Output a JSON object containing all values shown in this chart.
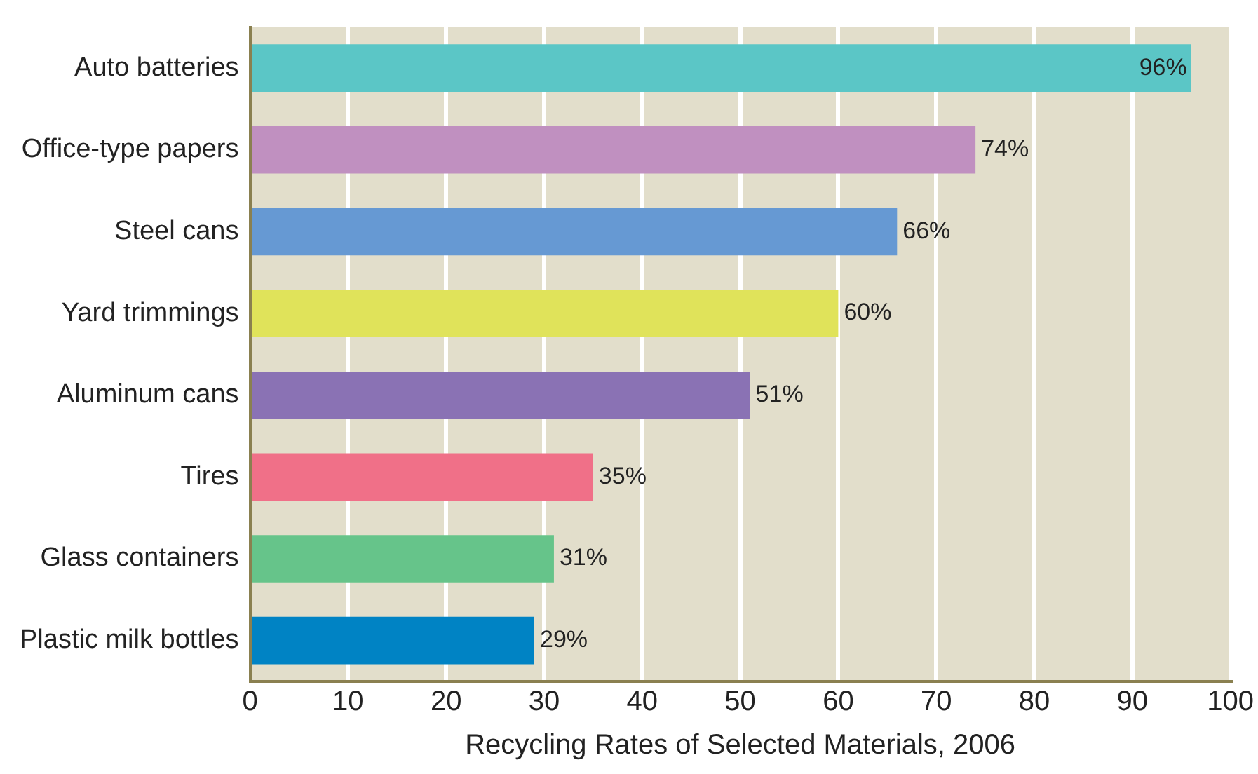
{
  "chart_data": {
    "type": "bar",
    "orientation": "horizontal",
    "xlabel": "Recycling Rates of Selected Materials, 2006",
    "categories": [
      "Auto batteries",
      "Office-type papers",
      "Steel cans",
      "Yard trimmings",
      "Aluminum cans",
      "Tires",
      "Glass containers",
      "Plastic milk bottles"
    ],
    "values": [
      96,
      74,
      66,
      60,
      51,
      35,
      31,
      29
    ],
    "colors": [
      "#5bc6c6",
      "#c090c0",
      "#6699d3",
      "#e0e35a",
      "#8a72b4",
      "#f07088",
      "#66c48a",
      "#0083c4"
    ],
    "value_labels": [
      "96%",
      "74%",
      "66%",
      "60%",
      "51%",
      "35%",
      "31%",
      "29%"
    ],
    "xlim": [
      0,
      100
    ],
    "xticks": [
      0,
      10,
      20,
      30,
      40,
      50,
      60,
      70,
      80,
      90,
      100
    ],
    "grid": "x"
  }
}
